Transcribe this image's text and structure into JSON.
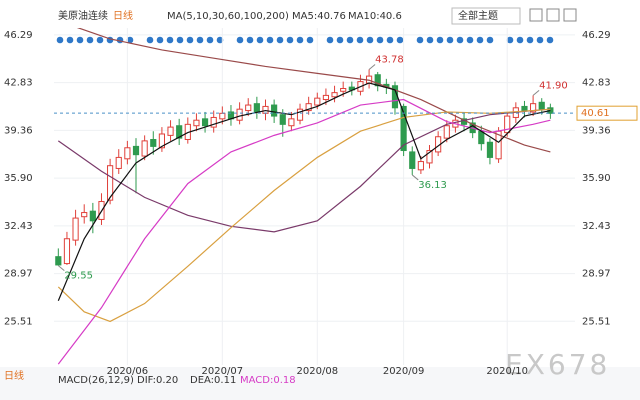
{
  "chart_data": {
    "type": "candlestick",
    "header": {
      "instrument": "美原油连续",
      "period": "日线",
      "ma": "MA(5,10,30,60,100,200)",
      "ma5": "MA5:40.76",
      "ma10": "MA10:40.6",
      "theme": "全部主题"
    },
    "footer": {
      "period": "日线",
      "macd": "MACD(26,12,9)",
      "dif": "DIF:0.20",
      "dea": "DEA:0.11",
      "macd_value": "MACD:0.18"
    },
    "watermark": "EX678",
    "xlim": [
      -0.5,
      58
    ],
    "xticks": [
      {
        "value": 8,
        "label": "2020/06"
      },
      {
        "value": 19,
        "label": "2020/07"
      },
      {
        "value": 30,
        "label": "2020/08"
      },
      {
        "value": 40,
        "label": "2020/09"
      },
      {
        "value": 52,
        "label": "2020/10"
      }
    ],
    "ylim": [
      22.34,
      46.79
    ],
    "yticks": [
      46.29,
      42.83,
      39.36,
      {
        "value": 35.9,
        "label": "35.90"
      },
      32.43,
      28.97,
      25.51
    ],
    "grid": true,
    "up_color": "#e0403a",
    "down_color": "#2e9a4e",
    "open": [
      30.2,
      29.7,
      31.4,
      33.1,
      33.5,
      32.9,
      34.3,
      36.6,
      37.3,
      38.2,
      37.5,
      38.7,
      38.1,
      39.0,
      39.7,
      38.7,
      39.7,
      40.2,
      39.6,
      40.2,
      40.7,
      40.1,
      40.8,
      41.3,
      40.6,
      41.2,
      40.5,
      39.7,
      40.1,
      40.8,
      41.2,
      41.6,
      41.8,
      42.2,
      42.5,
      42.2,
      42.8,
      43.4,
      42.7,
      42.6,
      41.1,
      37.8,
      36.5,
      37.0,
      37.8,
      38.8,
      39.6,
      40.2,
      39.9,
      39.3,
      38.5,
      37.3,
      39.2,
      40.3,
      41.1,
      40.7,
      41.4,
      41.0
    ],
    "high": [
      30.8,
      32.0,
      33.6,
      34.0,
      34.1,
      34.8,
      37.3,
      38.0,
      38.6,
      38.8,
      39.0,
      39.3,
      39.6,
      40.1,
      40.2,
      40.3,
      40.6,
      40.7,
      40.8,
      41.1,
      41.2,
      41.4,
      41.7,
      41.8,
      41.6,
      41.6,
      40.9,
      40.7,
      41.3,
      41.8,
      42.1,
      42.4,
      42.6,
      42.9,
      42.9,
      43.4,
      43.78,
      43.6,
      43.1,
      42.9,
      41.3,
      38.2,
      37.5,
      38.3,
      39.3,
      40.1,
      40.5,
      40.6,
      40.3,
      39.7,
      38.8,
      39.6,
      40.7,
      41.4,
      41.5,
      41.9,
      41.7,
      41.3
    ],
    "low": [
      29.55,
      29.6,
      31.0,
      32.6,
      31.9,
      32.5,
      34.0,
      36.2,
      36.9,
      34.8,
      37.2,
      37.6,
      37.8,
      38.6,
      38.3,
      38.4,
      39.3,
      39.2,
      39.2,
      39.8,
      39.7,
      39.8,
      40.4,
      40.2,
      40.1,
      39.9,
      38.9,
      39.3,
      39.8,
      40.5,
      40.9,
      41.2,
      41.4,
      41.8,
      41.9,
      41.9,
      42.4,
      42.2,
      42.0,
      40.5,
      37.5,
      36.13,
      36.2,
      36.6,
      37.5,
      38.5,
      39.2,
      39.3,
      38.8,
      37.9,
      36.9,
      37.0,
      38.9,
      39.9,
      40.3,
      40.4,
      40.5,
      40.2
    ],
    "close": [
      29.6,
      31.5,
      33.0,
      33.4,
      32.8,
      34.2,
      36.8,
      37.4,
      38.1,
      37.6,
      38.6,
      38.2,
      39.1,
      39.6,
      38.8,
      39.8,
      40.1,
      39.7,
      40.3,
      40.6,
      40.2,
      40.9,
      41.2,
      40.7,
      41.1,
      40.4,
      39.8,
      40.2,
      40.9,
      41.3,
      41.7,
      41.9,
      42.1,
      42.4,
      42.3,
      42.9,
      43.3,
      42.6,
      42.5,
      41.0,
      37.9,
      36.6,
      37.1,
      37.9,
      38.9,
      39.7,
      40.1,
      39.8,
      39.2,
      38.4,
      37.4,
      39.3,
      40.4,
      41.0,
      40.8,
      41.3,
      40.9,
      40.6
    ],
    "lines": [
      {
        "color": "#9a4a4a",
        "x": [
          0,
          6,
          12,
          18,
          24,
          30,
          36,
          42,
          48,
          54,
          57
        ],
        "values": [
          47.3,
          46.0,
          45.2,
          44.6,
          44.0,
          43.5,
          43.0,
          41.6,
          39.8,
          38.3,
          37.8
        ]
      },
      {
        "color": "#7a3a6a",
        "x": [
          0,
          5,
          10,
          15,
          20,
          25,
          30,
          35,
          40,
          45,
          50,
          55,
          57
        ],
        "values": [
          38.6,
          36.4,
          34.5,
          33.2,
          32.4,
          32.0,
          32.8,
          35.3,
          38.3,
          39.8,
          40.5,
          40.8,
          40.9
        ]
      },
      {
        "color": "#d9a040",
        "x": [
          0,
          3,
          6,
          10,
          15,
          20,
          25,
          30,
          35,
          40,
          45,
          50,
          55,
          57
        ],
        "values": [
          28.0,
          26.2,
          25.5,
          26.8,
          29.5,
          32.3,
          35.0,
          37.4,
          39.3,
          40.3,
          40.7,
          40.6,
          40.8,
          40.9
        ]
      },
      {
        "color": "#d63cc6",
        "x": [
          0,
          5,
          10,
          15,
          20,
          25,
          30,
          35,
          40,
          45,
          50,
          55,
          57
        ],
        "values": [
          22.4,
          26.5,
          31.5,
          35.5,
          37.8,
          39.0,
          39.9,
          41.2,
          41.6,
          40.0,
          39.2,
          39.8,
          40.1
        ]
      },
      {
        "color": "#111111",
        "x": [
          0,
          3,
          6,
          9,
          12,
          15,
          18,
          21,
          24,
          27,
          30,
          33,
          36,
          39,
          42,
          45,
          48,
          51,
          54,
          57
        ],
        "values": [
          27.0,
          31.5,
          34.5,
          37.0,
          38.2,
          39.2,
          39.8,
          40.4,
          40.8,
          40.5,
          41.1,
          42.0,
          42.8,
          42.3,
          37.3,
          38.7,
          39.7,
          38.5,
          40.4,
          40.8
        ]
      }
    ],
    "annotations": [
      {
        "x": 36,
        "value": 43.78,
        "color": "#d03030"
      },
      {
        "x": 55,
        "value": 41.9,
        "label": "41.90",
        "color": "#d03030"
      },
      {
        "x": 41,
        "value": 36.13,
        "color": "#2e9a4e"
      },
      {
        "x": 0,
        "value": 29.55,
        "color": "#2e9a4e"
      }
    ],
    "last_price": {
      "value": 40.61,
      "label": "40.61"
    }
  }
}
